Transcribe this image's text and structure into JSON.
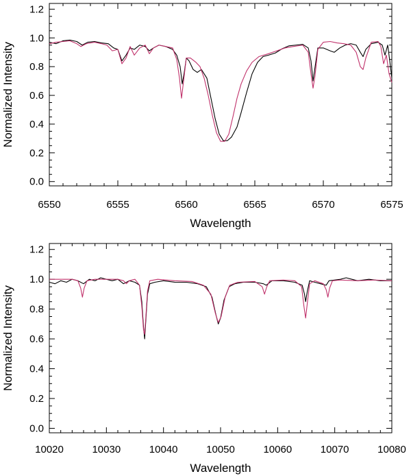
{
  "chart_data": [
    {
      "type": "line",
      "xlabel": "Wavelength",
      "ylabel": "Normalized Intensity",
      "xlim": [
        6550,
        6575
      ],
      "ylim": [
        -0.03,
        1.24
      ],
      "xticks": [
        "6550",
        "6555",
        "6560",
        "6565",
        "6570",
        "6575"
      ],
      "yticks": [
        "0.0",
        "0.2",
        "0.4",
        "0.6",
        "0.8",
        "1.0",
        "1.2"
      ],
      "grid": false,
      "series": [
        {
          "color": "#000000",
          "points": [
            [
              6550.0,
              0.97
            ],
            [
              6550.5,
              0.96
            ],
            [
              6551.0,
              0.98
            ],
            [
              6551.5,
              0.985
            ],
            [
              6552.0,
              0.975
            ],
            [
              6552.4,
              0.95
            ],
            [
              6552.8,
              0.97
            ],
            [
              6553.3,
              0.975
            ],
            [
              6553.8,
              0.965
            ],
            [
              6554.3,
              0.96
            ],
            [
              6554.7,
              0.93
            ],
            [
              6555.0,
              0.92
            ],
            [
              6555.3,
              0.84
            ],
            [
              6555.6,
              0.88
            ],
            [
              6555.9,
              0.93
            ],
            [
              6556.2,
              0.92
            ],
            [
              6556.6,
              0.95
            ],
            [
              6557.0,
              0.94
            ],
            [
              6557.3,
              0.91
            ],
            [
              6557.6,
              0.93
            ],
            [
              6558.0,
              0.95
            ],
            [
              6558.5,
              0.94
            ],
            [
              6559.0,
              0.92
            ],
            [
              6559.3,
              0.88
            ],
            [
              6559.55,
              0.8
            ],
            [
              6559.7,
              0.68
            ],
            [
              6559.85,
              0.76
            ],
            [
              6560.0,
              0.86
            ],
            [
              6560.2,
              0.84
            ],
            [
              6560.5,
              0.78
            ],
            [
              6560.8,
              0.76
            ],
            [
              6561.1,
              0.78
            ],
            [
              6561.5,
              0.72
            ],
            [
              6561.8,
              0.58
            ],
            [
              6562.1,
              0.44
            ],
            [
              6562.4,
              0.33
            ],
            [
              6562.7,
              0.285
            ],
            [
              6563.0,
              0.285
            ],
            [
              6563.3,
              0.31
            ],
            [
              6563.7,
              0.38
            ],
            [
              6564.0,
              0.48
            ],
            [
              6564.4,
              0.62
            ],
            [
              6564.8,
              0.75
            ],
            [
              6565.2,
              0.83
            ],
            [
              6565.6,
              0.87
            ],
            [
              6566.0,
              0.88
            ],
            [
              6566.5,
              0.895
            ],
            [
              6567.0,
              0.925
            ],
            [
              6567.5,
              0.945
            ],
            [
              6568.0,
              0.95
            ],
            [
              6568.5,
              0.955
            ],
            [
              6568.9,
              0.93
            ],
            [
              6569.1,
              0.84
            ],
            [
              6569.25,
              0.7
            ],
            [
              6569.4,
              0.8
            ],
            [
              6569.6,
              0.93
            ],
            [
              6570.0,
              0.93
            ],
            [
              6570.5,
              0.91
            ],
            [
              6570.8,
              0.9
            ],
            [
              6571.2,
              0.93
            ],
            [
              6571.6,
              0.95
            ],
            [
              6572.0,
              0.96
            ],
            [
              6572.4,
              0.95
            ],
            [
              6572.7,
              0.9
            ],
            [
              6572.9,
              0.87
            ],
            [
              6573.1,
              0.92
            ],
            [
              6573.5,
              0.96
            ],
            [
              6574.0,
              0.97
            ],
            [
              6574.3,
              0.95
            ],
            [
              6574.5,
              0.88
            ],
            [
              6574.7,
              0.95
            ],
            [
              6574.85,
              0.84
            ],
            [
              6575.0,
              0.72
            ]
          ]
        },
        {
          "color": "#c0306a",
          "points": [
            [
              6550.0,
              0.96
            ],
            [
              6550.5,
              0.97
            ],
            [
              6551.0,
              0.975
            ],
            [
              6551.5,
              0.98
            ],
            [
              6552.0,
              0.96
            ],
            [
              6552.3,
              0.94
            ],
            [
              6552.7,
              0.96
            ],
            [
              6553.3,
              0.97
            ],
            [
              6553.8,
              0.96
            ],
            [
              6554.2,
              0.95
            ],
            [
              6554.6,
              0.91
            ],
            [
              6555.0,
              0.92
            ],
            [
              6555.3,
              0.82
            ],
            [
              6555.6,
              0.86
            ],
            [
              6555.9,
              0.94
            ],
            [
              6556.2,
              0.88
            ],
            [
              6556.6,
              0.93
            ],
            [
              6557.0,
              0.95
            ],
            [
              6557.3,
              0.89
            ],
            [
              6557.6,
              0.93
            ],
            [
              6558.0,
              0.95
            ],
            [
              6558.5,
              0.94
            ],
            [
              6559.0,
              0.93
            ],
            [
              6559.3,
              0.85
            ],
            [
              6559.5,
              0.72
            ],
            [
              6559.65,
              0.58
            ],
            [
              6559.8,
              0.7
            ],
            [
              6560.0,
              0.86
            ],
            [
              6560.3,
              0.86
            ],
            [
              6560.7,
              0.83
            ],
            [
              6561.0,
              0.8
            ],
            [
              6561.3,
              0.72
            ],
            [
              6561.6,
              0.6
            ],
            [
              6561.9,
              0.46
            ],
            [
              6562.2,
              0.34
            ],
            [
              6562.5,
              0.28
            ],
            [
              6562.8,
              0.28
            ],
            [
              6563.1,
              0.33
            ],
            [
              6563.4,
              0.45
            ],
            [
              6563.7,
              0.58
            ],
            [
              6564.0,
              0.68
            ],
            [
              6564.4,
              0.77
            ],
            [
              6564.8,
              0.83
            ],
            [
              6565.3,
              0.87
            ],
            [
              6566.0,
              0.89
            ],
            [
              6566.6,
              0.91
            ],
            [
              6567.2,
              0.93
            ],
            [
              6567.8,
              0.94
            ],
            [
              6568.5,
              0.95
            ],
            [
              6568.9,
              0.9
            ],
            [
              6569.1,
              0.75
            ],
            [
              6569.25,
              0.65
            ],
            [
              6569.4,
              0.74
            ],
            [
              6569.6,
              0.92
            ],
            [
              6570.0,
              0.97
            ],
            [
              6570.5,
              0.975
            ],
            [
              6571.0,
              0.965
            ],
            [
              6571.5,
              0.96
            ],
            [
              6572.0,
              0.95
            ],
            [
              6572.4,
              0.9
            ],
            [
              6572.7,
              0.8
            ],
            [
              6572.9,
              0.78
            ],
            [
              6573.1,
              0.86
            ],
            [
              6573.5,
              0.97
            ],
            [
              6574.0,
              0.975
            ],
            [
              6574.2,
              0.94
            ],
            [
              6574.4,
              0.82
            ],
            [
              6574.6,
              0.88
            ],
            [
              6574.8,
              0.75
            ],
            [
              6575.0,
              0.69
            ]
          ]
        }
      ]
    },
    {
      "type": "line",
      "xlabel": "Wavelength",
      "ylabel": "Normalized Intensity",
      "xlim": [
        10020,
        10080
      ],
      "ylim": [
        -0.03,
        1.24
      ],
      "xticks": [
        "10020",
        "10030",
        "10040",
        "10050",
        "10060",
        "10070",
        "10080"
      ],
      "yticks": [
        "0.0",
        "0.2",
        "0.4",
        "0.6",
        "0.8",
        "1.0",
        "1.2"
      ],
      "grid": false,
      "series": [
        {
          "color": "#000000",
          "points": [
            [
              10020.0,
              0.98
            ],
            [
              10021.0,
              0.97
            ],
            [
              10022.0,
              0.99
            ],
            [
              10023.0,
              0.98
            ],
            [
              10024.0,
              1.0
            ],
            [
              10025.0,
              0.99
            ],
            [
              10026.0,
              0.97
            ],
            [
              10027.0,
              1.0
            ],
            [
              10028.0,
              0.99
            ],
            [
              10029.0,
              1.01
            ],
            [
              10030.0,
              1.0
            ],
            [
              10031.0,
              0.99
            ],
            [
              10032.0,
              1.0
            ],
            [
              10033.0,
              0.97
            ],
            [
              10034.0,
              0.99
            ],
            [
              10035.0,
              0.98
            ],
            [
              10035.8,
              0.96
            ],
            [
              10036.2,
              0.85
            ],
            [
              10036.5,
              0.68
            ],
            [
              10036.7,
              0.6
            ],
            [
              10036.9,
              0.72
            ],
            [
              10037.2,
              0.9
            ],
            [
              10037.6,
              0.97
            ],
            [
              10038.5,
              0.98
            ],
            [
              10040.0,
              0.99
            ],
            [
              10042.0,
              0.98
            ],
            [
              10044.0,
              0.98
            ],
            [
              10046.0,
              0.97
            ],
            [
              10047.5,
              0.95
            ],
            [
              10048.5,
              0.88
            ],
            [
              10049.2,
              0.76
            ],
            [
              10049.6,
              0.7
            ],
            [
              10050.0,
              0.74
            ],
            [
              10050.6,
              0.86
            ],
            [
              10051.5,
              0.95
            ],
            [
              10052.5,
              0.97
            ],
            [
              10054.0,
              0.98
            ],
            [
              10056.0,
              0.98
            ],
            [
              10057.5,
              0.97
            ],
            [
              10058.0,
              0.96
            ],
            [
              10059.0,
              0.99
            ],
            [
              10061.0,
              0.99
            ],
            [
              10063.0,
              0.98
            ],
            [
              10064.3,
              0.96
            ],
            [
              10064.7,
              0.9
            ],
            [
              10064.9,
              0.85
            ],
            [
              10065.2,
              0.92
            ],
            [
              10065.6,
              0.99
            ],
            [
              10066.5,
              0.98
            ],
            [
              10067.5,
              0.97
            ],
            [
              10068.5,
              0.96
            ],
            [
              10069.0,
              0.99
            ],
            [
              10071.0,
              1.0
            ],
            [
              10072.0,
              1.01
            ],
            [
              10074.0,
              0.99
            ],
            [
              10076.0,
              1.0
            ],
            [
              10078.0,
              0.99
            ],
            [
              10080.0,
              0.99
            ]
          ]
        },
        {
          "color": "#c0306a",
          "points": [
            [
              10020.0,
              1.0
            ],
            [
              10022.0,
              1.0
            ],
            [
              10024.0,
              1.0
            ],
            [
              10025.0,
              0.99
            ],
            [
              10025.5,
              0.94
            ],
            [
              10025.8,
              0.88
            ],
            [
              10026.1,
              0.94
            ],
            [
              10026.6,
              0.99
            ],
            [
              10028.0,
              1.0
            ],
            [
              10030.0,
              1.0
            ],
            [
              10032.0,
              1.0
            ],
            [
              10033.0,
              0.99
            ],
            [
              10033.5,
              0.97
            ],
            [
              10034.0,
              0.99
            ],
            [
              10035.0,
              1.0
            ],
            [
              10035.8,
              0.96
            ],
            [
              10036.2,
              0.82
            ],
            [
              10036.5,
              0.66
            ],
            [
              10036.7,
              0.63
            ],
            [
              10036.9,
              0.74
            ],
            [
              10037.2,
              0.92
            ],
            [
              10037.6,
              0.99
            ],
            [
              10039.0,
              1.0
            ],
            [
              10042.0,
              0.99
            ],
            [
              10045.0,
              0.985
            ],
            [
              10047.0,
              0.96
            ],
            [
              10048.3,
              0.9
            ],
            [
              10049.1,
              0.77
            ],
            [
              10049.6,
              0.71
            ],
            [
              10050.1,
              0.75
            ],
            [
              10050.8,
              0.88
            ],
            [
              10051.6,
              0.96
            ],
            [
              10053.0,
              0.98
            ],
            [
              10056.0,
              0.985
            ],
            [
              10057.3,
              0.95
            ],
            [
              10057.7,
              0.9
            ],
            [
              10058.1,
              0.95
            ],
            [
              10058.6,
              0.99
            ],
            [
              10061.0,
              0.995
            ],
            [
              10063.0,
              0.99
            ],
            [
              10064.2,
              0.95
            ],
            [
              10064.6,
              0.82
            ],
            [
              10064.9,
              0.74
            ],
            [
              10065.2,
              0.84
            ],
            [
              10065.6,
              0.97
            ],
            [
              10066.5,
              0.99
            ],
            [
              10068.0,
              0.97
            ],
            [
              10068.5,
              0.93
            ],
            [
              10068.8,
              0.88
            ],
            [
              10069.1,
              0.94
            ],
            [
              10069.6,
              0.99
            ],
            [
              10071.0,
              0.995
            ],
            [
              10074.0,
              0.99
            ],
            [
              10077.0,
              0.995
            ],
            [
              10080.0,
              0.99
            ]
          ]
        }
      ]
    }
  ]
}
